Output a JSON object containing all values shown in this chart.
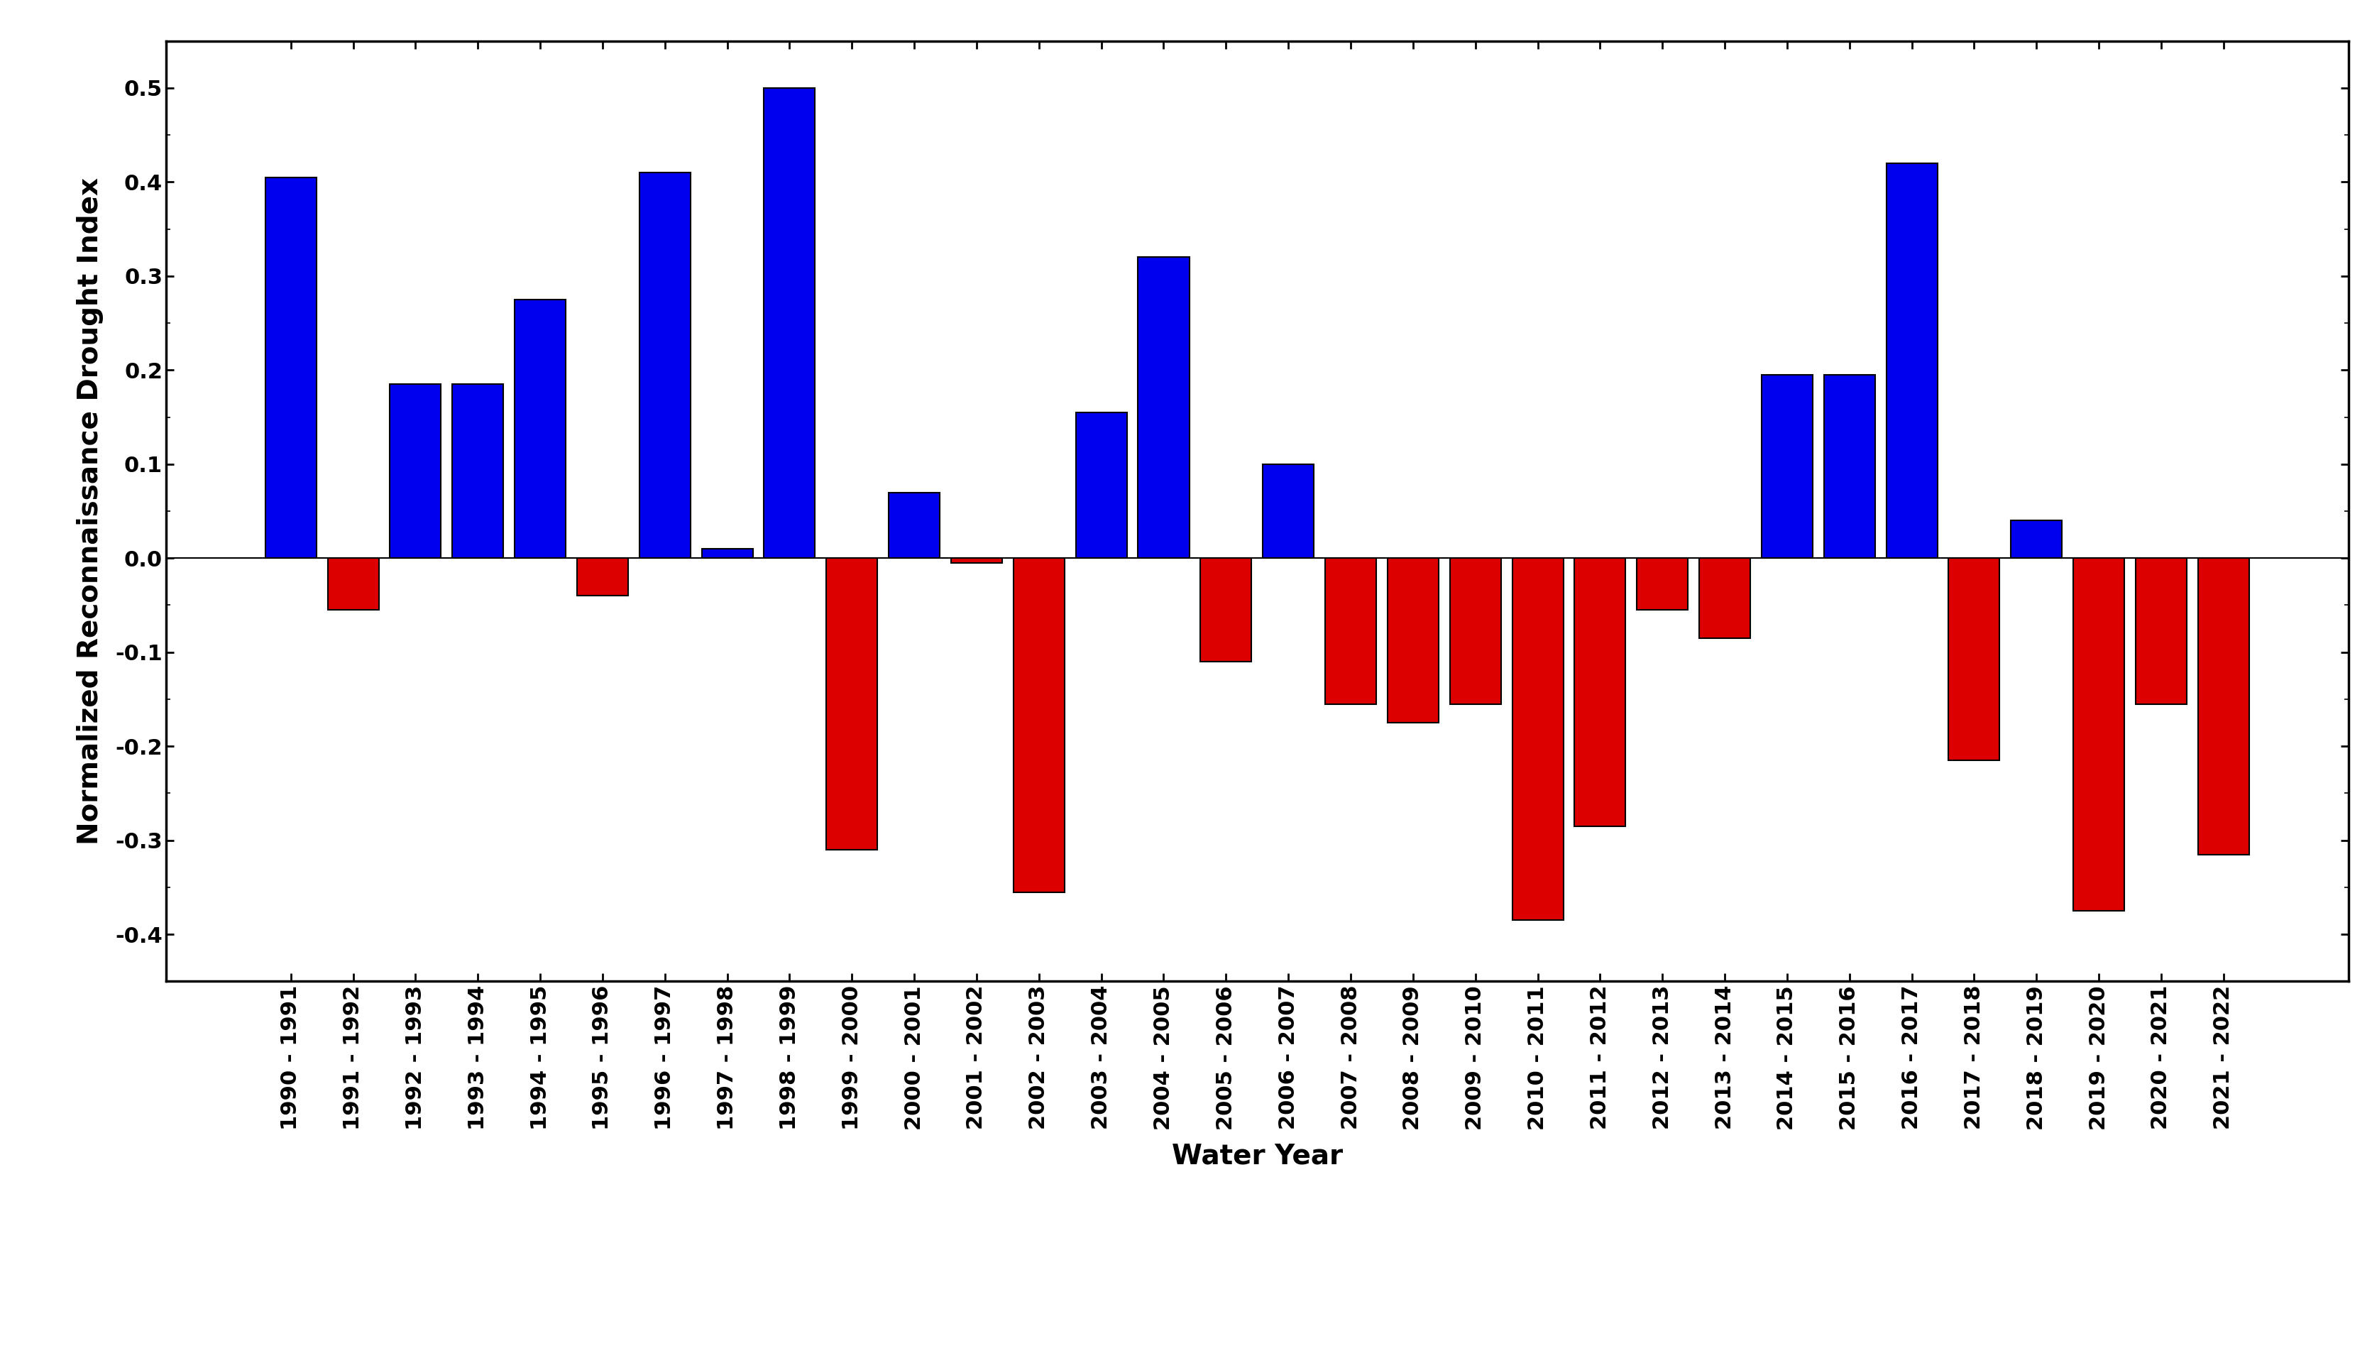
{
  "categories": [
    "1990 - 1991",
    "1991 - 1992",
    "1992 - 1993",
    "1993 - 1994",
    "1994 - 1995",
    "1995 - 1996",
    "1996 - 1997",
    "1997 - 1998",
    "1998 - 1999",
    "1999 - 2000",
    "2000 - 2001",
    "2001 - 2002",
    "2002 - 2003",
    "2003 - 2004",
    "2004 - 2005",
    "2005 - 2006",
    "2006 - 2007",
    "2007 - 2008",
    "2008 - 2009",
    "2009 - 2010",
    "2010 - 2011",
    "2011 - 2012",
    "2012 - 2013",
    "2013 - 2014",
    "2014 - 2015",
    "2015 - 2016",
    "2016 - 2017",
    "2017 - 2018",
    "2018 - 2019",
    "2019 - 2020",
    "2020 - 2021",
    "2021 - 2022"
  ],
  "values": [
    0.405,
    -0.055,
    0.185,
    0.185,
    0.275,
    -0.04,
    0.41,
    0.01,
    0.5,
    -0.31,
    0.07,
    -0.005,
    -0.355,
    0.155,
    0.32,
    -0.11,
    0.1,
    -0.155,
    -0.175,
    -0.155,
    -0.385,
    -0.285,
    -0.055,
    -0.085,
    0.195,
    0.195,
    0.42,
    -0.215,
    0.04,
    -0.375,
    -0.155,
    -0.315
  ],
  "xlabel": "Water Year",
  "ylabel": "Normalized Reconnaissance Drought Index",
  "ylim": [
    -0.45,
    0.55
  ],
  "yticks": [
    -0.4,
    -0.3,
    -0.2,
    -0.1,
    0.0,
    0.1,
    0.2,
    0.3,
    0.4,
    0.5
  ],
  "blue_color": "#0000EE",
  "red_color": "#DD0000",
  "bar_edge_color": "#000000",
  "background_color": "#FFFFFF",
  "axis_label_fontsize": 28,
  "tick_fontsize": 22,
  "bar_linewidth": 1.5,
  "bar_width": 0.82
}
